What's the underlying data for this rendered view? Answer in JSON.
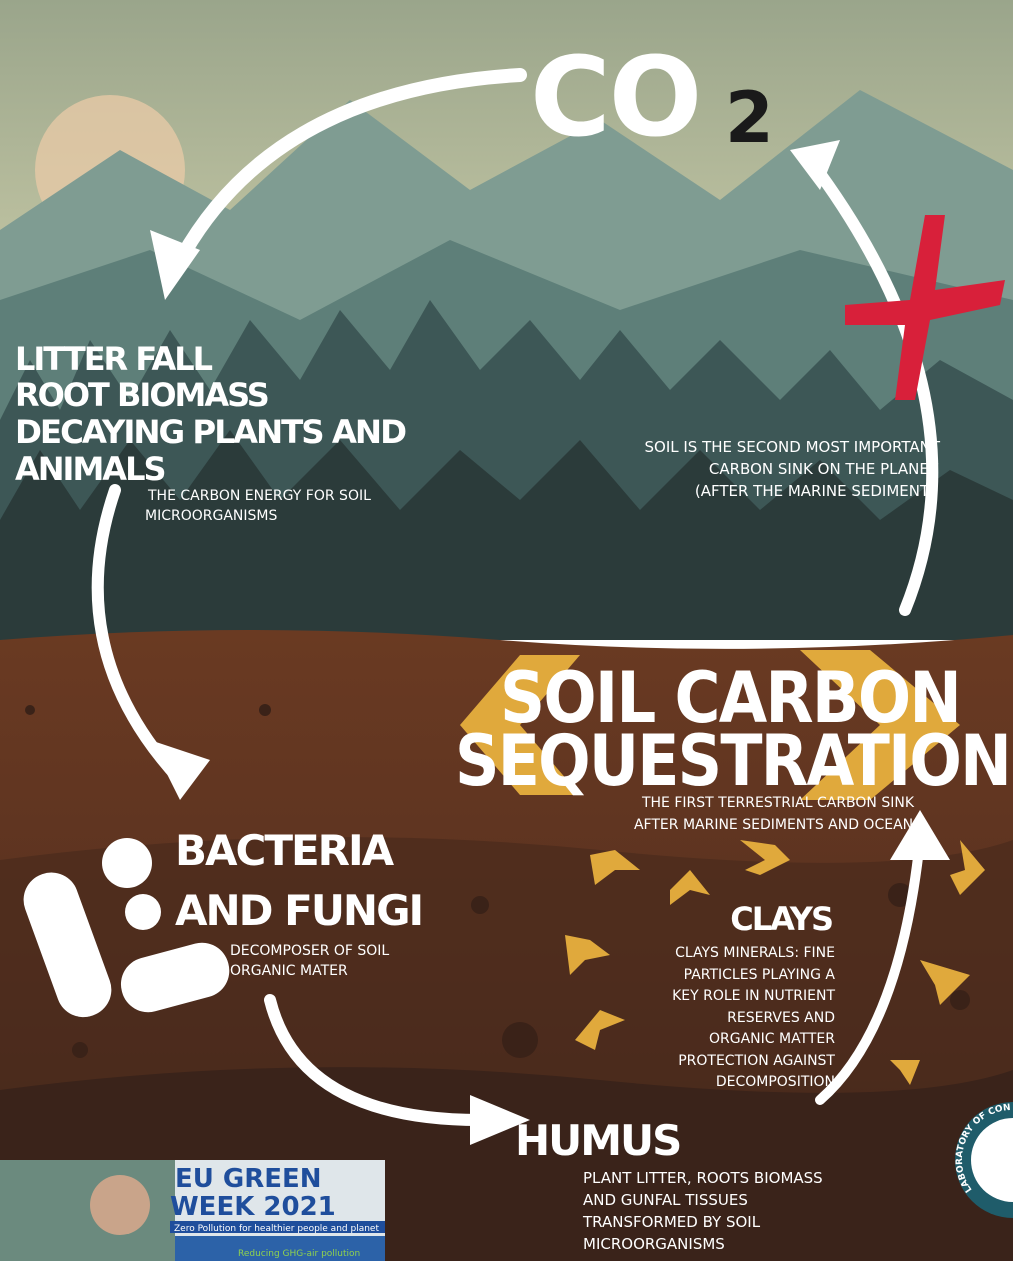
{
  "co2": {
    "main": "CO",
    "subscript": "2"
  },
  "litter": {
    "lines": [
      "LITTER FALL",
      "ROOT BIOMASS",
      "DECAYING PLANTS AND",
      "ANIMALS"
    ],
    "caption": [
      "THE CARBON ENERGY FOR SOIL",
      "MICROORGANISMS"
    ]
  },
  "sink_note": [
    "SOIL IS THE SECOND MOST IMPORTANT",
    "CARBON SINK ON THE PLANET",
    "(AFTER THE MARINE SEDIMENT)"
  ],
  "sequestration": {
    "lines": [
      "SOIL CARBON",
      "SEQUESTRATION"
    ],
    "caption": [
      "THE FIRST TERRESTRIAL CARBON SINK",
      "AFTER MARINE SEDIMENTS AND OCEANS"
    ]
  },
  "bacteria": {
    "lines": [
      "BACTERIA",
      "AND FUNGI"
    ],
    "caption": [
      "DECOMPOSER OF SOIL",
      "ORGANIC MATER"
    ]
  },
  "clays": {
    "title": "CLAYS",
    "lines": [
      "CLAYS MINERALS: FINE",
      "PARTICLES PLAYING A",
      "KEY ROLE IN NUTRIENT",
      "RESERVES AND",
      "ORGANIC MATTER",
      "PROTECTION AGAINST",
      "DECOMPOSITION"
    ]
  },
  "humus": {
    "title": "HUMUS",
    "lines": [
      "PLANT LITTER, ROOTS BIOMASS",
      "AND GUNFAL TISSUES",
      "TRANSFORMED BY SOIL",
      "MICROORGANISMS"
    ]
  },
  "eu_banner": {
    "lines": [
      "EU GREEN",
      "WEEK 2021"
    ],
    "subtitle": "Zero Pollution for healthier people and planet",
    "tag": "Reducing GHG-air pollution"
  },
  "logo": {
    "text": "LABORATORY OF CONSERVATI"
  }
}
